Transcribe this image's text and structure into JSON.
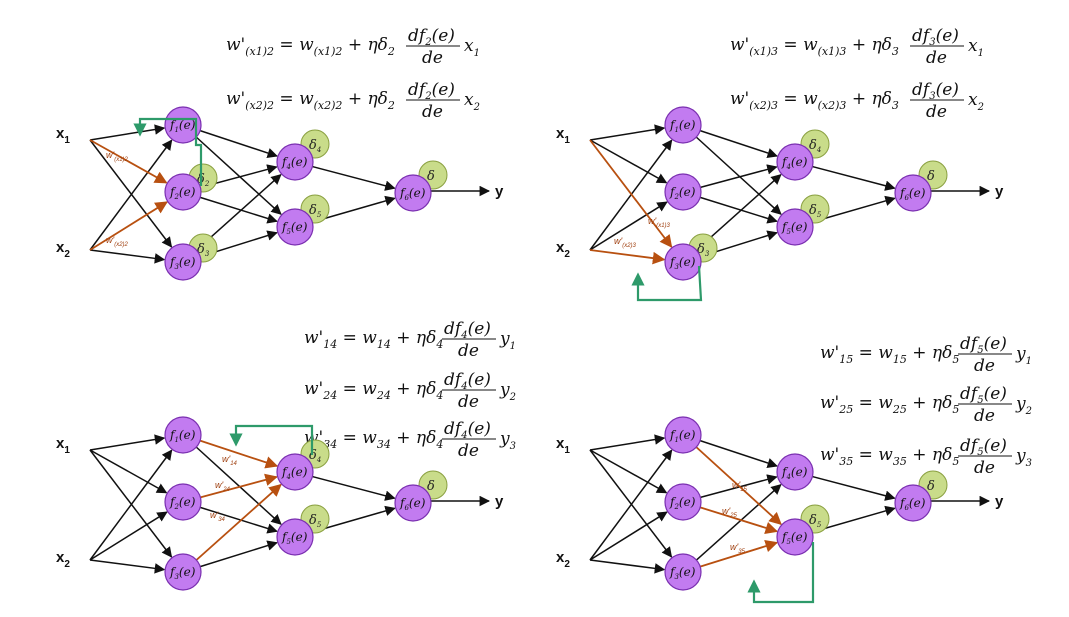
{
  "colors": {
    "neuron": "#c27bf0",
    "delta": "#c9dc8a",
    "edge": "#111111",
    "highlight": "#b85010",
    "feedback": "#2e9a6a"
  },
  "labels": {
    "x1": "x",
    "x1_sub": "1",
    "x2": "x",
    "x2_sub": "2",
    "y": "y",
    "f": "f",
    "e": "(e)",
    "delta": "δ",
    "w_prime": "w'"
  },
  "panels": [
    {
      "equations": [
        "w'(x1)2 = w(x1)2 + η δ2 (df2(e)/de) x1",
        "w'(x2)2 = w(x2)2 + η δ2 (df2(e)/de) x2"
      ],
      "highlight_labels": [
        [
          "(x1)2"
        ],
        [
          "(x2)2"
        ]
      ]
    },
    {
      "equations": [
        "w'(x1)3 = w(x1)3 + η δ3 (df3(e)/de) x1",
        "w'(x2)3 = w(x2)3 + η δ3 (df3(e)/de) x2"
      ],
      "highlight_labels": [
        [
          "(x1)3"
        ],
        [
          "(x2)3"
        ]
      ]
    },
    {
      "equations": [
        "w'14 = w14 + η δ4 (df4(e)/de) y1",
        "w'24 = w24 + η δ4 (df4(e)/de) y2",
        "w'34 = w34 + η δ4 (df4(e)/de) y3"
      ],
      "highlight_labels": [
        [
          "14"
        ],
        [
          "24"
        ],
        [
          "34"
        ]
      ]
    },
    {
      "equations": [
        "w'15 = w15 + η δ5 (df5(e)/de) y1",
        "w'25 = w25 + η δ5 (df5(e)/de) y2",
        "w'35 = w35 + η δ5 (df5(e)/de) y3"
      ],
      "highlight_labels": [
        [
          "15"
        ],
        [
          "25"
        ],
        [
          "35"
        ]
      ]
    }
  ]
}
